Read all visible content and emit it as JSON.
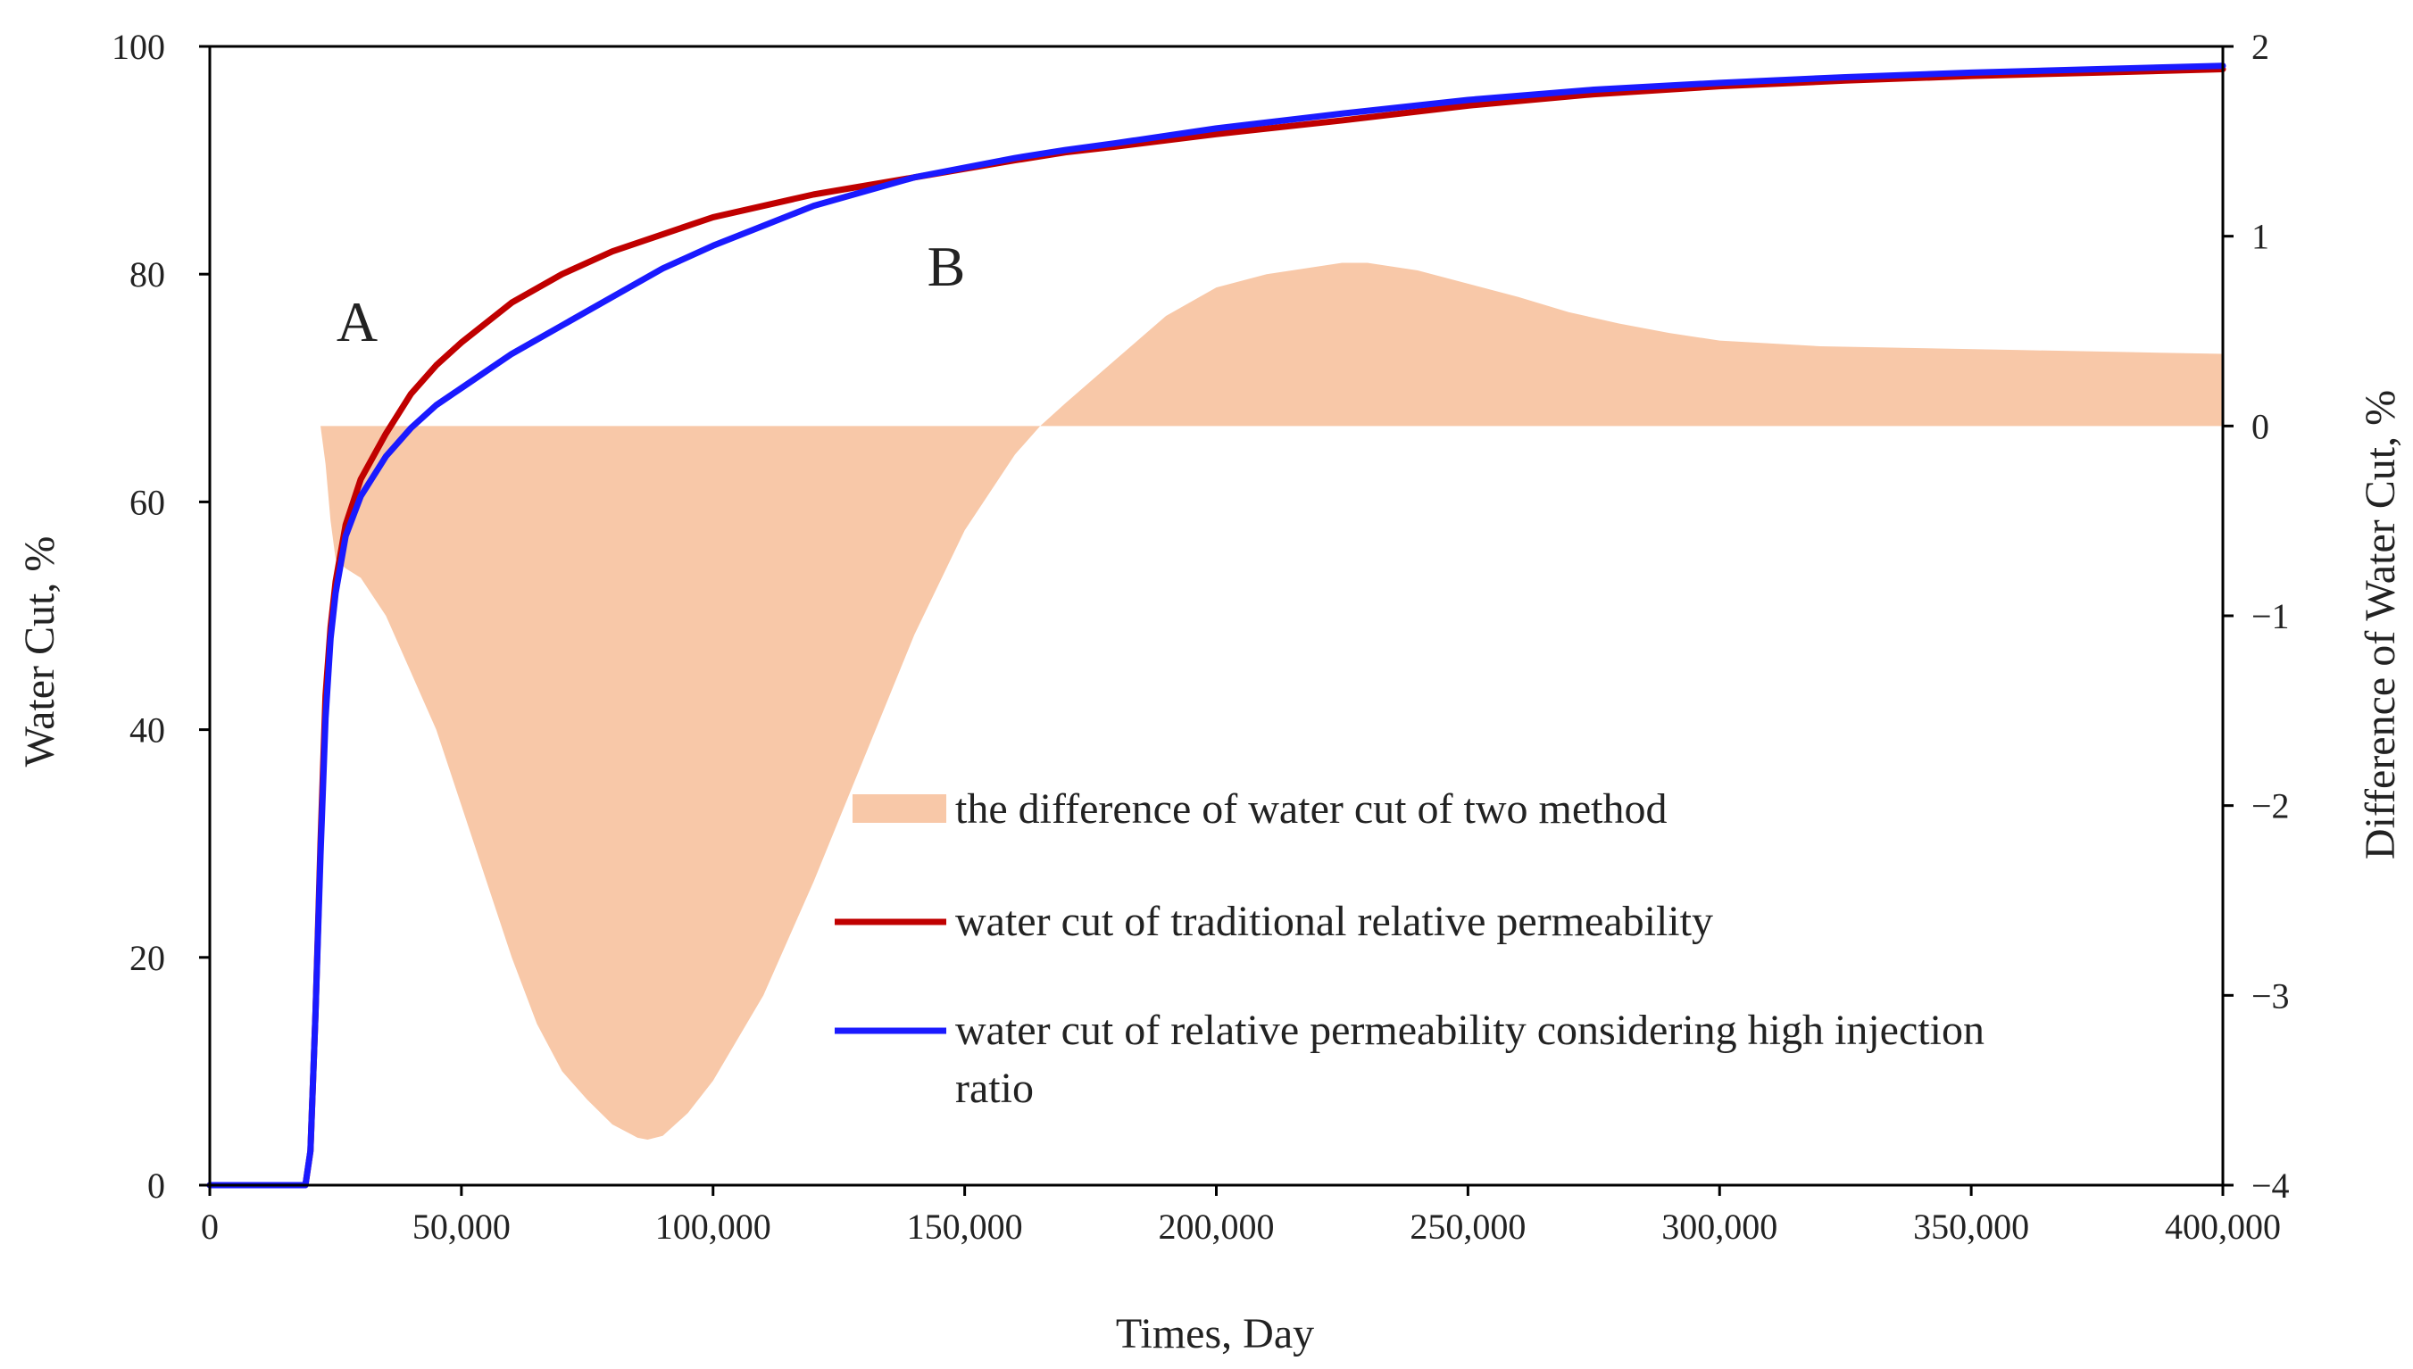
{
  "chart_data": {
    "type": "line",
    "title": "",
    "xlabel": "Times, Day",
    "ylabel": "Water Cut, %",
    "y2label": "Difference of Water Cut, %",
    "xlim": [
      0,
      400000
    ],
    "ylim": [
      0,
      100
    ],
    "y2lim": [
      -4,
      2
    ],
    "xticks": [
      0,
      50000,
      100000,
      150000,
      200000,
      250000,
      300000,
      350000,
      400000
    ],
    "xtick_labels": [
      "0",
      "50,000",
      "100,000",
      "150,000",
      "200,000",
      "250,000",
      "300,000",
      "350,000",
      "400,000"
    ],
    "yticks": [
      0,
      20,
      40,
      60,
      80,
      100
    ],
    "ytick_labels": [
      "0",
      "20",
      "40",
      "60",
      "80",
      "100"
    ],
    "y2ticks": [
      -4,
      -3,
      -2,
      -1,
      0,
      1,
      2
    ],
    "y2tick_labels": [
      "−4",
      "−3",
      "−2",
      "−1",
      "0",
      "1",
      "2"
    ],
    "grid": false,
    "legend_position": "center-right",
    "annotations": [
      {
        "text": "A",
        "x": 30000,
        "y": 76
      },
      {
        "text": "B",
        "x": 145000,
        "y": 81
      }
    ],
    "series": [
      {
        "name": "water cut of traditional relative permeability",
        "kind": "line",
        "axis": "left",
        "color": "#c00000",
        "x": [
          0,
          19000,
          20000,
          21000,
          22000,
          23000,
          24000,
          25000,
          27000,
          30000,
          35000,
          40000,
          45000,
          50000,
          60000,
          70000,
          80000,
          90000,
          100000,
          120000,
          140000,
          160000,
          170000,
          180000,
          200000,
          225000,
          250000,
          275000,
          300000,
          325000,
          350000,
          375000,
          400000
        ],
        "y": [
          0,
          0,
          3,
          15,
          30,
          43,
          49,
          53,
          58,
          62,
          66,
          69.5,
          72,
          74,
          77.5,
          80,
          82,
          83.5,
          85,
          87,
          88.5,
          90,
          90.7,
          91.2,
          92.3,
          93.5,
          94.8,
          95.8,
          96.5,
          97,
          97.4,
          97.7,
          98
        ]
      },
      {
        "name": "water cut of relative permeability considering high injection ratio",
        "kind": "line",
        "axis": "left",
        "color": "#1a1aff",
        "x": [
          0,
          19000,
          20000,
          21000,
          22000,
          23000,
          24000,
          25000,
          27000,
          30000,
          35000,
          40000,
          45000,
          50000,
          60000,
          70000,
          80000,
          90000,
          100000,
          120000,
          140000,
          160000,
          170000,
          180000,
          200000,
          225000,
          250000,
          275000,
          300000,
          325000,
          350000,
          375000,
          400000
        ],
        "y": [
          0,
          0,
          3,
          15,
          29,
          41,
          48,
          52,
          57,
          60.5,
          64,
          66.5,
          68.5,
          70,
          73,
          75.5,
          78,
          80.5,
          82.5,
          86,
          88.5,
          90.2,
          90.9,
          91.5,
          92.8,
          94.1,
          95.3,
          96.2,
          96.8,
          97.3,
          97.7,
          98,
          98.3
        ]
      },
      {
        "name": "the difference of water cut of two method",
        "kind": "area",
        "axis": "right",
        "color": "#f8c8a8",
        "x": [
          22000,
          23000,
          24000,
          25000,
          27000,
          30000,
          35000,
          40000,
          45000,
          50000,
          55000,
          60000,
          65000,
          70000,
          75000,
          80000,
          85000,
          87000,
          90000,
          95000,
          100000,
          110000,
          120000,
          130000,
          140000,
          150000,
          160000,
          165000,
          170000,
          180000,
          190000,
          200000,
          210000,
          220000,
          225000,
          230000,
          240000,
          250000,
          260000,
          270000,
          280000,
          290000,
          300000,
          320000,
          340000,
          360000,
          380000,
          400000
        ],
        "y": [
          0,
          -0.2,
          -0.5,
          -0.7,
          -0.75,
          -0.8,
          -1.0,
          -1.3,
          -1.6,
          -2.0,
          -2.4,
          -2.8,
          -3.15,
          -3.4,
          -3.55,
          -3.68,
          -3.75,
          -3.76,
          -3.74,
          -3.62,
          -3.45,
          -3.0,
          -2.4,
          -1.75,
          -1.1,
          -0.55,
          -0.15,
          0,
          0.12,
          0.35,
          0.58,
          0.73,
          0.8,
          0.84,
          0.86,
          0.86,
          0.82,
          0.75,
          0.68,
          0.6,
          0.54,
          0.49,
          0.45,
          0.42,
          0.41,
          0.4,
          0.39,
          0.38
        ]
      }
    ],
    "legend": [
      {
        "label": "the difference of water cut of two method",
        "style": "patch",
        "color": "#f8c8a8"
      },
      {
        "label": "water cut of traditional relative permeability",
        "style": "line",
        "color": "#c00000"
      },
      {
        "label": "water cut of relative permeability considering high injection",
        "label_cont": "ratio",
        "style": "line",
        "color": "#1a1aff"
      }
    ]
  }
}
